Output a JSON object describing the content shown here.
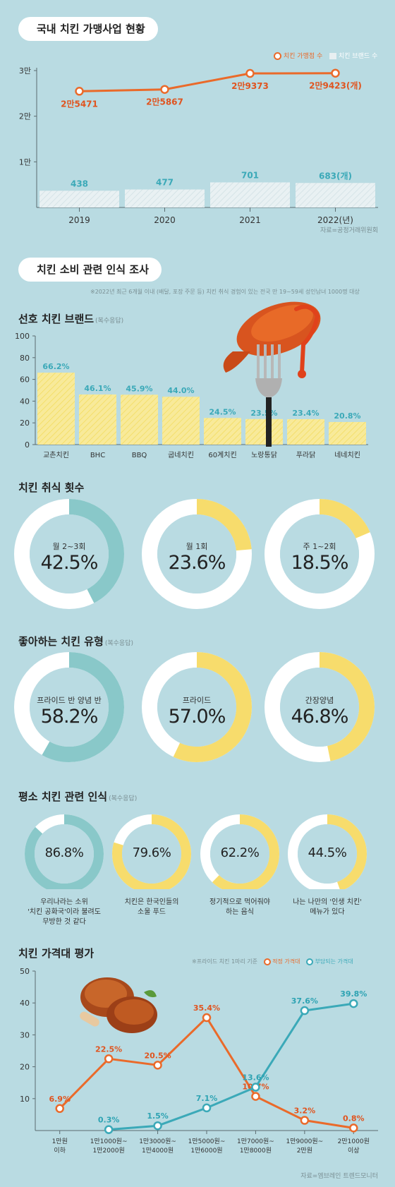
{
  "section1": {
    "title": "국내 치킨 가맹사업 현황",
    "legend_stores": "치킨 가맹점 수",
    "legend_brands": "치킨 브랜드 수",
    "source": "자료=공정거래위원회",
    "chart_data": {
      "type": "bar",
      "categories": [
        "2019",
        "2020",
        "2021",
        "2022(년)"
      ],
      "y_ticks": [
        "3만",
        "2만",
        "1만"
      ],
      "ylim": [
        0,
        30000
      ],
      "series": [
        {
          "name": "치킨 가맹점 수",
          "type": "line",
          "values": [
            25471,
            25867,
            29373,
            29423
          ],
          "labels": [
            "2만5471",
            "2만5867",
            "2만9373",
            "2만9423(개)"
          ]
        },
        {
          "name": "치킨 브랜드 수",
          "type": "bar",
          "values": [
            438,
            477,
            701,
            683
          ],
          "labels": [
            "438",
            "477",
            "701",
            "683(개)"
          ]
        }
      ]
    }
  },
  "section2": {
    "title": "치킨 소비 관련 인식 조사",
    "note": "※2022년 최근 6개월 이내 (배달, 포장 주문 등) 치킨 취식 경험이 있는 전국 만 19~59세 성인남녀 1000명 대상"
  },
  "brands": {
    "title": "선호 치킨 브랜드",
    "sub": "(복수응답)",
    "chart_data": {
      "type": "bar",
      "categories": [
        "교촌치킨",
        "BHC",
        "BBQ",
        "굽네치킨",
        "60계치킨",
        "노랑통닭",
        "푸라닭",
        "네네치킨"
      ],
      "values": [
        66.2,
        46.1,
        45.9,
        44.0,
        24.5,
        23.5,
        23.4,
        20.8
      ],
      "labels": [
        "66.2%",
        "46.1%",
        "45.9%",
        "44.0%",
        "24.5%",
        "23.5%",
        "23.4%",
        "20.8%"
      ],
      "y_ticks": [
        "100",
        "80",
        "60",
        "40",
        "20",
        "0"
      ],
      "ylim": [
        0,
        100
      ]
    }
  },
  "frequency": {
    "title": "치킨 취식 횟수",
    "items": [
      {
        "label": "월 2~3회",
        "value": "42.5%",
        "pct": 42.5,
        "color": "#89c8c9"
      },
      {
        "label": "월 1회",
        "value": "23.6%",
        "pct": 23.6,
        "color": "#f7dc6c"
      },
      {
        "label": "주 1~2회",
        "value": "18.5%",
        "pct": 18.5,
        "color": "#f7dc6c"
      }
    ]
  },
  "types": {
    "title": "좋아하는 치킨 유형",
    "sub": "(복수응답)",
    "items": [
      {
        "label": "프라이드 반 양념 반",
        "value": "58.2%",
        "pct": 58.2,
        "color": "#89c8c9"
      },
      {
        "label": "프라이드",
        "value": "57.0%",
        "pct": 57.0,
        "color": "#f7dc6c"
      },
      {
        "label": "간장양념",
        "value": "46.8%",
        "pct": 46.8,
        "color": "#f7dc6c"
      }
    ]
  },
  "perception": {
    "title": "평소 치킨 관련 인식",
    "sub": "(복수응답)",
    "items": [
      {
        "value": "86.8%",
        "pct": 86.8,
        "color": "#89c8c9",
        "cap1": "우리나라는 소위",
        "cap2": "'치킨 공화국'이라 불려도",
        "cap3": "무방한 것 같다"
      },
      {
        "value": "79.6%",
        "pct": 79.6,
        "color": "#f7dc6c",
        "cap1": "치킨은 한국인들의",
        "cap2": "소울 푸드",
        "cap3": ""
      },
      {
        "value": "62.2%",
        "pct": 62.2,
        "color": "#f7dc6c",
        "cap1": "정기적으로 먹어줘야",
        "cap2": "하는 음식",
        "cap3": ""
      },
      {
        "value": "44.5%",
        "pct": 44.5,
        "color": "#f7dc6c",
        "cap1": "나는 나만의 '인생 치킨'",
        "cap2": "메뉴가 있다",
        "cap3": ""
      }
    ]
  },
  "price": {
    "title": "치킨 가격대 평가",
    "legend_note": "※프라이드 치킨 1마리 기준",
    "legend_fair": "적정 가격대",
    "legend_burden": "부담되는 가격대",
    "source": "자료=엠브레인 트렌드모니터",
    "chart_data": {
      "type": "line",
      "categories": [
        [
          "1만원",
          "이하"
        ],
        [
          "1만1000원~",
          "1만2000원"
        ],
        [
          "1만3000원~",
          "1만4000원"
        ],
        [
          "1만5000원~",
          "1만6000원"
        ],
        [
          "1만7000원~",
          "1만8000원"
        ],
        [
          "1만9000원~",
          "2만원"
        ],
        [
          "2만1000원",
          "이상"
        ]
      ],
      "y_ticks": [
        "50",
        "40",
        "30",
        "20",
        "10"
      ],
      "ylim": [
        0,
        50
      ],
      "series": [
        {
          "name": "적정 가격대",
          "values": [
            6.9,
            22.5,
            20.5,
            35.4,
            10.7,
            3.2,
            0.8
          ],
          "labels": [
            "6.9%",
            "22.5%",
            "20.5%",
            "35.4%",
            "10.7%",
            "3.2%",
            "0.8%"
          ]
        },
        {
          "name": "부담되는 가격대",
          "values": [
            null,
            0.3,
            1.5,
            7.1,
            13.6,
            37.6,
            39.8
          ],
          "labels": [
            null,
            "0.3%",
            "1.5%",
            "7.1%",
            "13.6%",
            "37.6%",
            "39.8%"
          ]
        }
      ]
    }
  }
}
